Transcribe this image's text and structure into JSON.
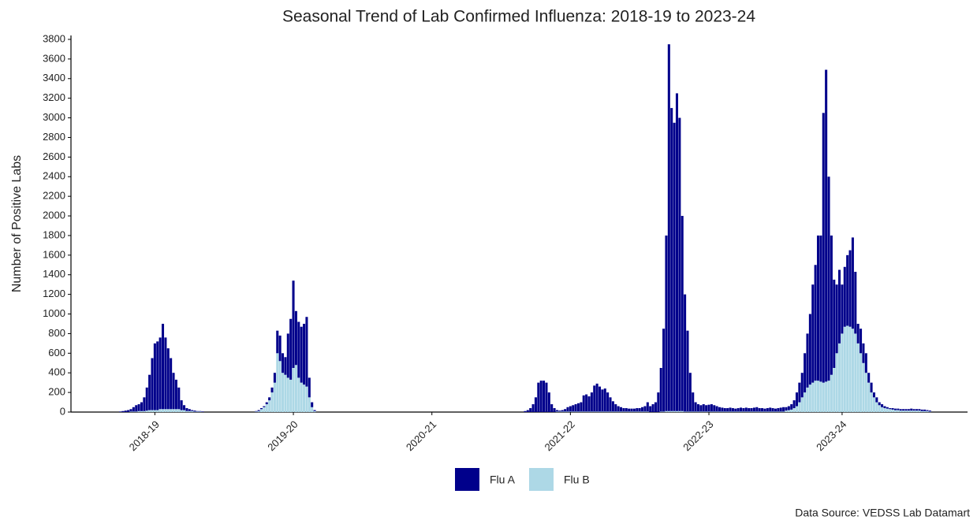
{
  "chart_data": {
    "type": "stacked_bar",
    "title": "Seasonal Trend of Lab Confirmed Influenza: 2018-19 to 2023-24",
    "y_label": "Number of Positive Labs",
    "source": "Data Source: VEDSS Lab Datamart",
    "ylim": [
      0,
      3840
    ],
    "yticks": [
      0,
      200,
      400,
      600,
      800,
      1000,
      1200,
      1400,
      1600,
      1800,
      2000,
      2200,
      2400,
      2600,
      2800,
      3000,
      3200,
      3400,
      3600,
      3800
    ],
    "legend": "bottom",
    "categories": [
      null,
      null,
      null,
      null,
      null,
      null,
      null,
      null,
      null,
      null,
      null,
      null,
      null,
      null,
      null,
      null,
      null,
      null,
      null,
      null,
      null,
      null,
      null,
      null,
      null,
      null,
      null,
      null,
      null,
      null,
      null,
      "2018-19",
      null,
      null,
      null,
      null,
      null,
      null,
      null,
      null,
      null,
      null,
      null,
      null,
      null,
      null,
      null,
      null,
      null,
      null,
      null,
      null,
      null,
      null,
      null,
      null,
      null,
      null,
      null,
      null,
      null,
      null,
      null,
      null,
      null,
      null,
      null,
      null,
      null,
      null,
      null,
      null,
      null,
      null,
      null,
      null,
      null,
      null,
      null,
      null,
      null,
      null,
      null,
      "2019-20",
      null,
      null,
      null,
      null,
      null,
      null,
      null,
      null,
      null,
      null,
      null,
      null,
      null,
      null,
      null,
      null,
      null,
      null,
      null,
      null,
      null,
      null,
      null,
      null,
      null,
      null,
      null,
      null,
      null,
      null,
      null,
      null,
      null,
      null,
      null,
      null,
      null,
      null,
      null,
      null,
      null,
      null,
      null,
      null,
      null,
      null,
      null,
      null,
      null,
      null,
      null,
      "2020-21",
      null,
      null,
      null,
      null,
      null,
      null,
      null,
      null,
      null,
      null,
      null,
      null,
      null,
      null,
      null,
      null,
      null,
      null,
      null,
      null,
      null,
      null,
      null,
      null,
      null,
      null,
      null,
      null,
      null,
      null,
      null,
      null,
      null,
      null,
      null,
      null,
      null,
      null,
      null,
      null,
      null,
      null,
      null,
      null,
      null,
      null,
      null,
      null,
      null,
      null,
      null,
      "2021-22",
      null,
      null,
      null,
      null,
      null,
      null,
      null,
      null,
      null,
      null,
      null,
      null,
      null,
      null,
      null,
      null,
      null,
      null,
      null,
      null,
      null,
      null,
      null,
      null,
      null,
      null,
      null,
      null,
      null,
      null,
      null,
      null,
      null,
      null,
      null,
      null,
      null,
      null,
      null,
      null,
      null,
      null,
      null,
      null,
      null,
      null,
      null,
      null,
      null,
      null,
      null,
      "2022-23",
      null,
      null,
      null,
      null,
      null,
      null,
      null,
      null,
      null,
      null,
      null,
      null,
      null,
      null,
      null,
      null,
      null,
      null,
      null,
      null,
      null,
      null,
      null,
      null,
      null,
      null,
      null,
      null,
      null,
      null,
      null,
      null,
      null,
      null,
      null,
      null,
      null,
      null,
      null,
      null,
      null,
      null,
      null,
      null,
      null,
      null,
      null,
      null,
      null,
      "2023-24",
      null,
      null,
      null,
      null,
      null,
      null,
      null,
      null,
      null,
      null,
      null,
      null,
      null,
      null,
      null,
      null,
      null,
      null,
      null,
      null,
      null,
      null,
      null,
      null,
      null,
      null,
      null,
      null,
      null,
      null,
      null,
      null,
      null,
      null,
      null,
      null,
      null,
      null,
      null,
      null,
      null,
      null,
      null,
      null,
      null,
      null
    ],
    "series": [
      {
        "name": "Flu A",
        "color": "#00008b",
        "values": [
          0,
          0,
          0,
          0,
          0,
          0,
          0,
          0,
          0,
          0,
          0,
          0,
          0,
          0,
          0,
          0,
          0,
          0,
          5,
          10,
          15,
          20,
          25,
          45,
          65,
          70,
          90,
          140,
          235,
          360,
          530,
          680,
          700,
          730,
          870,
          730,
          620,
          520,
          370,
          300,
          220,
          100,
          50,
          30,
          20,
          10,
          10,
          5,
          5,
          5,
          0,
          0,
          0,
          0,
          0,
          0,
          0,
          0,
          0,
          0,
          0,
          0,
          0,
          0,
          0,
          0,
          0,
          0,
          0,
          5,
          10,
          10,
          10,
          20,
          30,
          50,
          100,
          230,
          260,
          200,
          180,
          450,
          620,
          890,
          550,
          570,
          570,
          620,
          710,
          200,
          50,
          10,
          0,
          0,
          0,
          0,
          0,
          0,
          0,
          0,
          0,
          0,
          0,
          0,
          0,
          0,
          0,
          0,
          0,
          0,
          0,
          0,
          0,
          0,
          0,
          0,
          0,
          0,
          0,
          0,
          0,
          0,
          0,
          0,
          0,
          0,
          0,
          0,
          0,
          0,
          0,
          0,
          0,
          0,
          0,
          0,
          0,
          0,
          0,
          0,
          0,
          0,
          0,
          0,
          0,
          0,
          0,
          0,
          0,
          0,
          0,
          0,
          0,
          0,
          0,
          0,
          0,
          0,
          0,
          0,
          0,
          0,
          0,
          0,
          0,
          0,
          0,
          0,
          0,
          0,
          10,
          20,
          40,
          80,
          150,
          300,
          320,
          320,
          300,
          200,
          80,
          40,
          15,
          10,
          15,
          25,
          45,
          55,
          65,
          75,
          85,
          95,
          165,
          175,
          155,
          195,
          265,
          285,
          255,
          225,
          235,
          195,
          145,
          105,
          75,
          55,
          45,
          35,
          35,
          30,
          30,
          30,
          35,
          35,
          45,
          55,
          95,
          60,
          80,
          100,
          200,
          445,
          845,
          1790,
          3740,
          3090,
          2940,
          3240,
          2990,
          1990,
          1195,
          825,
          395,
          195,
          95,
          75,
          65,
          75,
          65,
          70,
          75,
          65,
          55,
          45,
          40,
          35,
          35,
          40,
          35,
          30,
          35,
          40,
          35,
          40,
          35,
          35,
          40,
          45,
          35,
          35,
          30,
          35,
          40,
          35,
          30,
          35,
          40,
          45,
          35,
          40,
          55,
          80,
          140,
          200,
          250,
          400,
          550,
          720,
          1000,
          1180,
          1480,
          1490,
          2750,
          3180,
          2080,
          1420,
          900,
          700,
          750,
          500,
          610,
          720,
          780,
          930,
          630,
          200,
          250,
          200,
          200,
          100,
          100,
          50,
          50,
          30,
          30,
          20,
          15,
          10,
          15,
          15,
          15,
          15,
          15,
          15,
          15,
          20,
          15,
          15,
          15,
          15,
          15,
          10,
          10,
          0,
          0,
          0,
          0,
          0,
          0,
          0,
          0,
          0,
          0,
          0,
          0,
          0
        ]
      },
      {
        "name": "Flu B",
        "color": "#add8e6",
        "values": [
          0,
          0,
          0,
          0,
          0,
          0,
          0,
          0,
          0,
          0,
          0,
          0,
          0,
          0,
          0,
          0,
          0,
          0,
          0,
          0,
          0,
          0,
          5,
          5,
          5,
          10,
          10,
          10,
          15,
          20,
          20,
          20,
          20,
          30,
          30,
          30,
          30,
          30,
          30,
          30,
          30,
          20,
          20,
          10,
          10,
          10,
          5,
          5,
          5,
          0,
          0,
          0,
          0,
          0,
          0,
          0,
          0,
          0,
          0,
          0,
          0,
          0,
          0,
          0,
          0,
          0,
          0,
          0,
          0,
          5,
          10,
          30,
          50,
          80,
          120,
          200,
          300,
          600,
          520,
          400,
          380,
          350,
          330,
          450,
          480,
          350,
          300,
          280,
          260,
          150,
          50,
          10,
          0,
          0,
          0,
          0,
          0,
          0,
          0,
          0,
          0,
          0,
          0,
          0,
          0,
          0,
          0,
          0,
          0,
          0,
          0,
          0,
          0,
          0,
          0,
          0,
          0,
          0,
          0,
          0,
          0,
          0,
          0,
          0,
          0,
          0,
          0,
          0,
          0,
          0,
          0,
          0,
          0,
          0,
          0,
          0,
          0,
          0,
          0,
          0,
          0,
          0,
          0,
          0,
          0,
          0,
          0,
          0,
          0,
          0,
          0,
          0,
          0,
          0,
          0,
          0,
          0,
          0,
          0,
          0,
          0,
          0,
          0,
          0,
          0,
          0,
          0,
          0,
          0,
          0,
          0,
          0,
          0,
          0,
          0,
          0,
          0,
          0,
          0,
          0,
          0,
          0,
          5,
          5,
          5,
          5,
          5,
          5,
          5,
          5,
          5,
          5,
          5,
          5,
          5,
          5,
          5,
          5,
          5,
          5,
          5,
          5,
          5,
          5,
          5,
          5,
          5,
          5,
          5,
          5,
          5,
          5,
          5,
          5,
          5,
          5,
          5,
          0,
          0,
          0,
          0,
          5,
          5,
          10,
          10,
          10,
          10,
          10,
          10,
          10,
          5,
          5,
          5,
          5,
          5,
          5,
          5,
          5,
          5,
          5,
          5,
          5,
          5,
          5,
          5,
          5,
          5,
          5,
          5,
          5,
          5,
          5,
          5,
          5,
          5,
          5,
          5,
          5,
          5,
          5,
          5,
          5,
          5,
          5,
          5,
          5,
          5,
          5,
          15,
          20,
          25,
          40,
          60,
          100,
          150,
          200,
          250,
          280,
          300,
          320,
          320,
          310,
          300,
          310,
          320,
          380,
          450,
          600,
          700,
          800,
          870,
          880,
          870,
          850,
          800,
          700,
          600,
          500,
          400,
          300,
          200,
          150,
          100,
          70,
          50,
          40,
          35,
          30,
          25,
          20,
          20,
          15,
          15,
          15,
          15,
          15,
          15,
          15,
          15,
          10,
          10,
          10,
          5,
          0,
          0,
          0,
          0,
          0,
          0,
          0,
          0,
          0,
          0,
          0,
          0,
          0
        ]
      }
    ]
  }
}
